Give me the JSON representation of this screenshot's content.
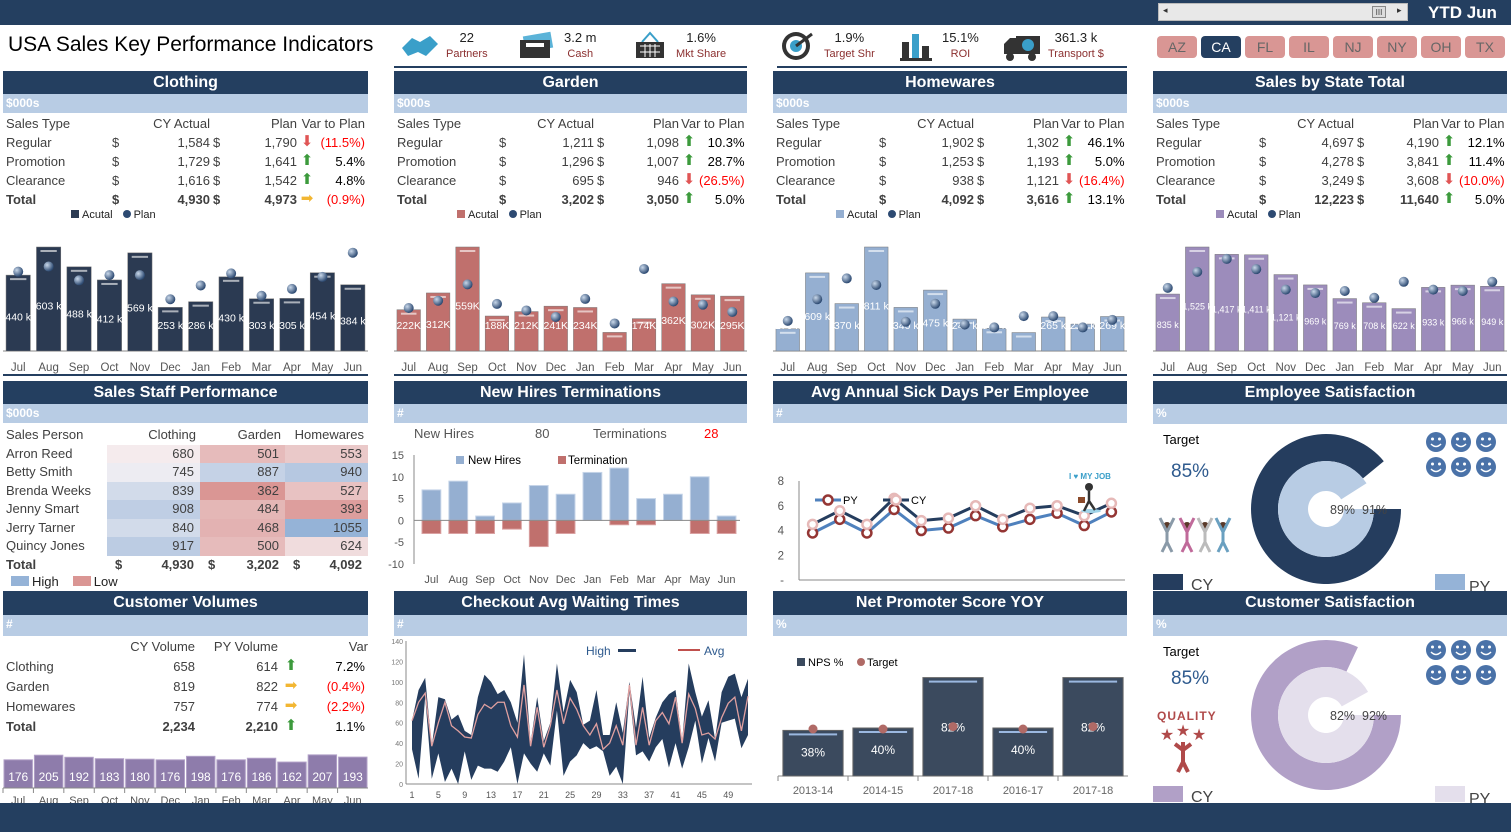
{
  "header": {
    "title": "USA Sales Key Performance Indicators",
    "period": "YTD Jun",
    "states": [
      "AZ",
      "CA",
      "FL",
      "IL",
      "NJ",
      "NY",
      "OH",
      "TX"
    ],
    "selected_state": "CA"
  },
  "kpis": [
    {
      "icon": "handshake-icon",
      "value": "22",
      "label": "Partners"
    },
    {
      "icon": "bank-card-icon",
      "value": "3.2 m",
      "label": "Cash"
    },
    {
      "icon": "basket-icon",
      "value": "1.6%",
      "label": "Mkt Share"
    },
    {
      "icon": "target-icon",
      "value": "1.9%",
      "label": "Target Shr"
    },
    {
      "icon": "bar-roi-icon",
      "value": "15.1%",
      "label": "ROI"
    },
    {
      "icon": "truck-icon",
      "value": "361.3 k",
      "label": "Transport $"
    }
  ],
  "months": [
    "Jul",
    "Aug",
    "Sep",
    "Oct",
    "Nov",
    "Dec",
    "Jan",
    "Feb",
    "Mar",
    "Apr",
    "May",
    "Jun"
  ],
  "sales_panels": [
    {
      "title": "Clothing",
      "unit": "$000s",
      "headers": [
        "Sales Type",
        "CY Actual",
        "Plan",
        "Var to Plan"
      ],
      "rows": [
        {
          "type": "Regular",
          "cur": "$",
          "actual": "1,584",
          "cur2": "$",
          "plan": "1,790",
          "trend": "down",
          "var": "(11.5%)"
        },
        {
          "type": "Promotion",
          "cur": "$",
          "actual": "1,729",
          "cur2": "$",
          "plan": "1,641",
          "trend": "up",
          "var": "5.4%"
        },
        {
          "type": "Clearance",
          "cur": "$",
          "actual": "1,616",
          "cur2": "$",
          "plan": "1,542",
          "trend": "up",
          "var": "4.8%"
        },
        {
          "type": "Total",
          "cur": "$",
          "actual": "4,930",
          "cur2": "$",
          "plan": "4,973",
          "trend": "flat",
          "var": "(0.9%)"
        }
      ],
      "legend": {
        "actual": "Acutal",
        "plan": "Plan"
      },
      "color": "#2b3a52",
      "chart": {
        "type": "bar",
        "actual": [
          440,
          603,
          488,
          412,
          569,
          253,
          286,
          430,
          303,
          305,
          454,
          384
        ],
        "plan": [
          460,
          490,
          410,
          440,
          440,
          300,
          380,
          450,
          320,
          360,
          430,
          570
        ],
        "label_suffix": " k"
      }
    },
    {
      "title": "Garden",
      "unit": "$000s",
      "headers": [
        "Sales Type",
        "CY Actual",
        "Plan",
        "Var to Plan"
      ],
      "rows": [
        {
          "type": "Regular",
          "cur": "$",
          "actual": "1,211",
          "cur2": "$",
          "plan": "1,098",
          "trend": "up",
          "var": "10.3%"
        },
        {
          "type": "Promotion",
          "cur": "$",
          "actual": "1,296",
          "cur2": "$",
          "plan": "1,007",
          "trend": "up",
          "var": "28.7%"
        },
        {
          "type": "Clearance",
          "cur": "$",
          "actual": "695",
          "cur2": "$",
          "plan": "946",
          "trend": "down",
          "var": "(26.5%)"
        },
        {
          "type": "Total",
          "cur": "$",
          "actual": "3,202",
          "cur2": "$",
          "plan": "3,050",
          "trend": "up",
          "var": "5.0%"
        }
      ],
      "legend": {
        "actual": "Acutal",
        "plan": "Plan"
      },
      "color": "#c0706d",
      "chart": {
        "type": "bar",
        "actual": [
          222,
          312,
          559,
          188,
          212,
          241,
          234,
          100,
          174,
          362,
          302,
          295
        ],
        "plan": [
          231,
          270,
          358,
          253,
          218,
          183,
          280,
          148,
          441,
          266,
          249,
          210
        ],
        "label_suffix": "K"
      }
    },
    {
      "title": "Homewares",
      "unit": "$000s",
      "headers": [
        "Sales Type",
        "CY Actual",
        "Plan",
        "Var to Plan"
      ],
      "rows": [
        {
          "type": "Regular",
          "cur": "$",
          "actual": "1,902",
          "cur2": "$",
          "plan": "1,302",
          "trend": "up",
          "var": "46.1%"
        },
        {
          "type": "Promotion",
          "cur": "$",
          "actual": "1,253",
          "cur2": "$",
          "plan": "1,193",
          "trend": "up",
          "var": "5.0%"
        },
        {
          "type": "Clearance",
          "cur": "$",
          "actual": "938",
          "cur2": "$",
          "plan": "1,121",
          "trend": "down",
          "var": "(16.4%)"
        },
        {
          "type": "Total",
          "cur": "$",
          "actual": "4,092",
          "cur2": "$",
          "plan": "3,616",
          "trend": "up",
          "var": "13.1%"
        }
      ],
      "legend": {
        "actual": "Acutal",
        "plan": "Plan"
      },
      "color": "#95afd1",
      "chart": {
        "type": "bar",
        "actual": [
          173,
          609,
          370,
          811,
          340,
          475,
          249,
          177,
          144,
          265,
          210,
          269
        ],
        "plan": [
          235,
          404,
          566,
          515,
          228,
          368,
          206,
          184,
          272,
          272,
          184,
          243
        ],
        "label_suffix": " k"
      }
    },
    {
      "title": "Sales by State Total",
      "unit": "$000s",
      "headers": [
        "Sales Type",
        "CY Actual",
        "Plan",
        "Var to Plan"
      ],
      "rows": [
        {
          "type": "Regular",
          "cur": "$",
          "actual": "4,697",
          "cur2": "$",
          "plan": "4,190",
          "trend": "up",
          "var": "12.1%"
        },
        {
          "type": "Promotion",
          "cur": "$",
          "actual": "4,278",
          "cur2": "$",
          "plan": "3,841",
          "trend": "up",
          "var": "11.4%"
        },
        {
          "type": "Clearance",
          "cur": "$",
          "actual": "3,249",
          "cur2": "$",
          "plan": "3,608",
          "trend": "down",
          "var": "(10.0%)"
        },
        {
          "type": "Total",
          "cur": "$",
          "actual": "12,223",
          "cur2": "$",
          "plan": "11,640",
          "trend": "up",
          "var": "5.0%"
        }
      ],
      "legend": {
        "actual": "Acutal",
        "plan": "Plan"
      },
      "color": "#9c8cbb",
      "chart": {
        "type": "bar",
        "actual": [
          835,
          1525,
          1417,
          1411,
          1121,
          969,
          769,
          708,
          622,
          933,
          966,
          949
        ],
        "plan": [
          926,
          1160,
          1350,
          1200,
          900,
          850,
          880,
          780,
          1015,
          900,
          880,
          1015
        ],
        "label_suffix": " k"
      }
    }
  ],
  "staff": {
    "title": "Sales Staff Performance",
    "unit": "$000s",
    "headers": [
      "Sales Person",
      "Clothing",
      "Garden",
      "Homewares"
    ],
    "rows": [
      {
        "name": "Arron Reed",
        "values": [
          680,
          501,
          553
        ]
      },
      {
        "name": "Betty Smith",
        "values": [
          745,
          887,
          940
        ]
      },
      {
        "name": "Brenda Weeks",
        "values": [
          839,
          362,
          527
        ]
      },
      {
        "name": "Jenny Smart",
        "values": [
          908,
          484,
          393
        ]
      },
      {
        "name": "Jerry Tarner",
        "values": [
          840,
          468,
          1055
        ]
      },
      {
        "name": "Quincy Jones",
        "values": [
          917,
          500,
          624
        ]
      }
    ],
    "total": {
      "label": "Total",
      "cur": "$",
      "values": [
        "4,930",
        "3,202",
        "4,092"
      ]
    },
    "legend": {
      "high": "High",
      "low": "Low",
      "high_color": "#95b3d7",
      "low_color": "#da9694"
    }
  },
  "hires": {
    "title": "New Hires Terminations",
    "unit": "#",
    "new_hires_label": "New Hires",
    "new_hires_total": "80",
    "terminations_label": "Terminations",
    "terminations_total": "28",
    "legend": [
      "New Hires",
      "Termination"
    ],
    "chart": {
      "type": "bar",
      "new_hires": [
        7,
        9,
        1,
        4,
        8,
        6,
        11,
        12,
        5,
        6,
        10,
        1
      ],
      "terminations": [
        -3,
        -3,
        -3,
        -2,
        -6,
        -3,
        0,
        -1,
        -1,
        0,
        -3,
        -3
      ],
      "ylim": [
        -10,
        15
      ],
      "yticks": [
        "15",
        "10",
        "5",
        "0",
        "-5",
        "-10"
      ]
    }
  },
  "sick": {
    "title": "Avg Annual Sick Days Per Employee",
    "unit": "#",
    "badge": "I ♥ MY JOB",
    "legend": [
      "PY",
      "CY"
    ],
    "chart": {
      "type": "line",
      "py": [
        3.8,
        4.9,
        3.8,
        5.7,
        4.0,
        4.2,
        5.2,
        4.3,
        4.9,
        5.4,
        4.4,
        5.5
      ],
      "cy": [
        4.5,
        5.6,
        4.5,
        6.6,
        4.8,
        5.0,
        6.0,
        4.9,
        5.8,
        6.0,
        5.2,
        6.2
      ],
      "ylim": [
        0,
        8
      ],
      "yticks": [
        "8",
        "6",
        "4",
        "2",
        "-"
      ]
    }
  },
  "employee_sat": {
    "title": "Employee Satisfaction",
    "unit": "%",
    "target_label": "Target",
    "target": "85%",
    "cy": 89,
    "py": 91,
    "cy_label": "89%",
    "py_label": "91%",
    "legend": [
      "CY",
      "PY"
    ],
    "cy_color": "#253d5e",
    "py_color": "#b8cce4"
  },
  "volumes": {
    "title": "Customer Volumes",
    "unit": "#",
    "headers": [
      "CY Volume",
      "PY Volume",
      "Var"
    ],
    "rows": [
      {
        "name": "Clothing",
        "cy": "658",
        "py": "614",
        "trend": "up",
        "var": "7.2%"
      },
      {
        "name": "Garden",
        "cy": "819",
        "py": "822",
        "trend": "flat",
        "var": "(0.4%)"
      },
      {
        "name": "Homewares",
        "cy": "757",
        "py": "774",
        "trend": "flat",
        "var": "(2.2%)"
      },
      {
        "name": "Total",
        "cy": "2,234",
        "py": "2,210",
        "trend": "up",
        "var": "1.1%"
      }
    ],
    "chart": {
      "type": "bar",
      "values": [
        176,
        205,
        192,
        183,
        180,
        176,
        198,
        176,
        186,
        162,
        207,
        193
      ]
    }
  },
  "checkout": {
    "title": "Checkout Avg Waiting Times",
    "unit": "#",
    "legend": [
      "High",
      "Avg"
    ],
    "chart": {
      "type": "area",
      "ylim": [
        0,
        140
      ],
      "yticks": [
        "140",
        "120",
        "100",
        "80",
        "60",
        "40",
        "20",
        "0"
      ],
      "xticks": [
        "1",
        "5",
        "9",
        "13",
        "17",
        "21",
        "25",
        "29",
        "33",
        "37",
        "41",
        "45",
        "49"
      ],
      "high": [
        62,
        92,
        104,
        37,
        85,
        83,
        63,
        68,
        52,
        48,
        85,
        107,
        100,
        88,
        92,
        80,
        60,
        127,
        40,
        85,
        42,
        60,
        118,
        70,
        102,
        90,
        58,
        62,
        92,
        48,
        48,
        80,
        50,
        100,
        55,
        105,
        45,
        65,
        80,
        88,
        92,
        42,
        118,
        90,
        66,
        82,
        44,
        90,
        105,
        108,
        85,
        103
      ],
      "low": [
        34,
        5,
        85,
        5,
        30,
        2,
        15,
        0,
        32,
        4,
        18,
        15,
        15,
        12,
        22,
        36,
        0,
        30,
        20,
        12,
        30,
        18,
        72,
        8,
        22,
        28,
        40,
        34,
        37,
        32,
        8,
        17,
        0,
        90,
        28,
        32,
        22,
        36,
        44,
        16,
        40,
        15,
        36,
        62,
        20,
        45,
        22,
        60,
        62,
        64,
        35,
        48
      ],
      "avg": [
        62,
        80,
        89,
        37,
        60,
        80,
        57,
        52,
        46,
        45,
        68,
        78,
        74,
        80,
        80,
        57,
        46,
        97,
        37,
        75,
        36,
        57,
        92,
        59,
        84,
        73,
        57,
        48,
        59,
        34,
        40,
        57,
        38,
        97,
        38,
        75,
        38,
        62,
        70,
        59,
        85,
        40,
        88,
        74,
        48,
        50,
        44,
        65,
        79,
        85,
        52,
        86
      ]
    }
  },
  "nps": {
    "title": "Net Promoter Score YOY",
    "unit": "%",
    "legend": [
      "NPS %",
      "Target"
    ],
    "chart": {
      "type": "bar",
      "categories": [
        "2013-14",
        "2014-15",
        "2017-18",
        "2016-17",
        "2017-18"
      ],
      "values": [
        38,
        40,
        82,
        40,
        82
      ],
      "labels": [
        "38%",
        "40%",
        "82%",
        "40%",
        "82%"
      ],
      "target": [
        40,
        40,
        40,
        40,
        40
      ]
    }
  },
  "customer_sat": {
    "title": "Customer Satisfaction",
    "unit": "%",
    "target_label": "Target",
    "target": "85%",
    "badge": "QUALITY",
    "cy": 82,
    "py": 92,
    "cy_label": "82%",
    "py_label": "92%",
    "legend": [
      "CY",
      "PY"
    ],
    "cy_color": "#b1a0c7",
    "py_color": "#e4dfec"
  }
}
